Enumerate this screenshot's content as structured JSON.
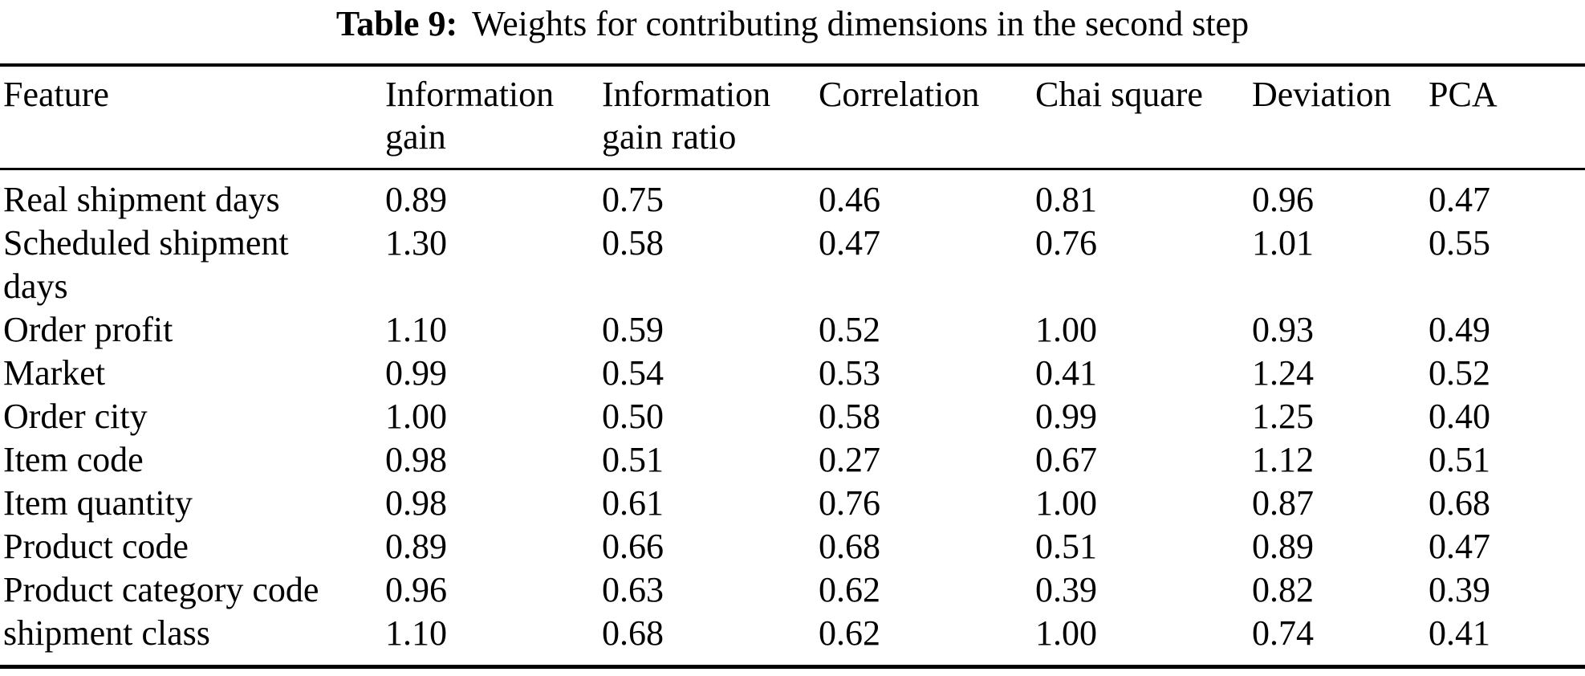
{
  "title": {
    "label": "Table 9:",
    "text": "Weights for contributing dimensions in the second step"
  },
  "colors": {
    "text": "#000000",
    "background": "#ffffff",
    "rules": "#000000"
  },
  "table": {
    "columns": [
      "Feature",
      "Information gain",
      "Information gain ratio",
      "Correlation",
      "Chai square",
      "Deviation",
      "PCA"
    ],
    "rows": [
      {
        "feature": "Real shipment days",
        "values": [
          "0.89",
          "0.75",
          "0.46",
          "0.81",
          "0.96",
          "0.47"
        ]
      },
      {
        "feature": "Scheduled shipment days",
        "values": [
          "1.30",
          "0.58",
          "0.47",
          "0.76",
          "1.01",
          "0.55"
        ]
      },
      {
        "feature": "Order profit",
        "values": [
          "1.10",
          "0.59",
          "0.52",
          "1.00",
          "0.93",
          "0.49"
        ]
      },
      {
        "feature": "Market",
        "values": [
          "0.99",
          "0.54",
          "0.53",
          "0.41",
          "1.24",
          "0.52"
        ]
      },
      {
        "feature": "Order city",
        "values": [
          "1.00",
          "0.50",
          "0.58",
          "0.99",
          "1.25",
          "0.40"
        ]
      },
      {
        "feature": "Item code",
        "values": [
          "0.98",
          "0.51",
          "0.27",
          "0.67",
          "1.12",
          "0.51"
        ]
      },
      {
        "feature": "Item quantity",
        "values": [
          "0.98",
          "0.61",
          "0.76",
          "1.00",
          "0.87",
          "0.68"
        ]
      },
      {
        "feature": "Product code",
        "values": [
          "0.89",
          "0.66",
          "0.68",
          "0.51",
          "0.89",
          "0.47"
        ]
      },
      {
        "feature": "Product category code",
        "values": [
          "0.96",
          "0.63",
          "0.62",
          "0.39",
          "0.82",
          "0.39"
        ]
      },
      {
        "feature": "shipment class",
        "values": [
          "1.10",
          "0.68",
          "0.62",
          "1.00",
          "0.74",
          "0.41"
        ]
      }
    ]
  }
}
